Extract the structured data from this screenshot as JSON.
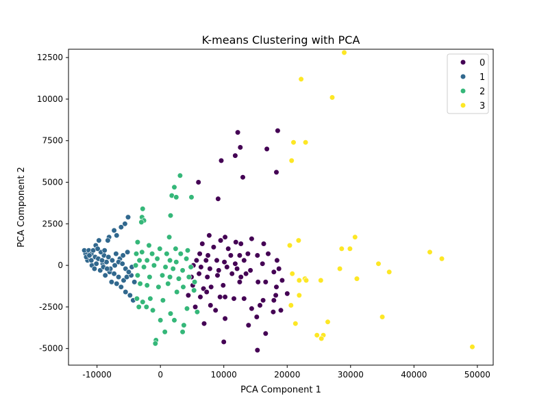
{
  "chart_data": {
    "type": "scatter",
    "title": "K-means Clustering with PCA",
    "xlabel": "PCA Component 1",
    "ylabel": "PCA Component 2",
    "xlim": [
      -14500,
      52500
    ],
    "ylim": [
      -6000,
      13000
    ],
    "xticks": [
      -10000,
      0,
      10000,
      20000,
      30000,
      40000,
      50000
    ],
    "yticks": [
      -5000,
      -2500,
      0,
      2500,
      5000,
      7500,
      10000,
      12500
    ],
    "grid": false,
    "legend": {
      "position": "top-right",
      "title": ""
    },
    "series": [
      {
        "name": "0",
        "color": "#440154",
        "points": [
          [
            12200,
            8000
          ],
          [
            18500,
            8100
          ],
          [
            12600,
            7100
          ],
          [
            16800,
            7000
          ],
          [
            11800,
            6600
          ],
          [
            9600,
            6300
          ],
          [
            13000,
            5300
          ],
          [
            18300,
            5600
          ],
          [
            6000,
            5000
          ],
          [
            9100,
            4000
          ],
          [
            10200,
            1700
          ],
          [
            7700,
            1800
          ],
          [
            6600,
            1300
          ],
          [
            9500,
            1500
          ],
          [
            11900,
            1400
          ],
          [
            12700,
            1300
          ],
          [
            14400,
            1600
          ],
          [
            16300,
            1300
          ],
          [
            8400,
            1100
          ],
          [
            10700,
            1000
          ],
          [
            6200,
            700
          ],
          [
            7500,
            600
          ],
          [
            11100,
            600
          ],
          [
            12500,
            600
          ],
          [
            13800,
            700
          ],
          [
            15300,
            600
          ],
          [
            17000,
            700
          ],
          [
            5700,
            300
          ],
          [
            7200,
            300
          ],
          [
            8900,
            300
          ],
          [
            10100,
            200
          ],
          [
            11800,
            100
          ],
          [
            13200,
            300
          ],
          [
            16100,
            100
          ],
          [
            18400,
            300
          ],
          [
            5200,
            0
          ],
          [
            6400,
            -100
          ],
          [
            7800,
            -200
          ],
          [
            9200,
            -300
          ],
          [
            10500,
            -100
          ],
          [
            12100,
            -200
          ],
          [
            14200,
            -300
          ],
          [
            17900,
            -400
          ],
          [
            18700,
            -200
          ],
          [
            4900,
            -700
          ],
          [
            6100,
            -500
          ],
          [
            7400,
            -700
          ],
          [
            9000,
            -600
          ],
          [
            11300,
            -500
          ],
          [
            12700,
            -700
          ],
          [
            13500,
            -500
          ],
          [
            15400,
            -1000
          ],
          [
            16600,
            -1000
          ],
          [
            19200,
            -900
          ],
          [
            5100,
            -1200
          ],
          [
            6800,
            -1400
          ],
          [
            8000,
            -1300
          ],
          [
            9900,
            -1200
          ],
          [
            12500,
            -1000
          ],
          [
            18300,
            -1300
          ],
          [
            4400,
            -1800
          ],
          [
            6300,
            -1900
          ],
          [
            7300,
            -1600
          ],
          [
            9400,
            -1900
          ],
          [
            10200,
            -1900
          ],
          [
            11600,
            -2000
          ],
          [
            13200,
            -2000
          ],
          [
            16200,
            -2100
          ],
          [
            17900,
            -2100
          ],
          [
            5500,
            -2500
          ],
          [
            7900,
            -2400
          ],
          [
            8700,
            -2700
          ],
          [
            14400,
            -2600
          ],
          [
            15700,
            -2400
          ],
          [
            17800,
            -2800
          ],
          [
            6900,
            -3500
          ],
          [
            10200,
            -3200
          ],
          [
            15200,
            -3100
          ],
          [
            13900,
            -3600
          ],
          [
            16600,
            -4100
          ],
          [
            10000,
            -4600
          ],
          [
            15300,
            -5100
          ],
          [
            19000,
            -2700
          ],
          [
            20000,
            -1700
          ],
          [
            18200,
            -1800
          ]
        ]
      },
      {
        "name": "1",
        "color": "#31688e",
        "points": [
          [
            -5100,
            2900
          ],
          [
            -5600,
            2500
          ],
          [
            -6200,
            2300
          ],
          [
            -7300,
            2100
          ],
          [
            -6900,
            1800
          ],
          [
            -8100,
            1700
          ],
          [
            -8300,
            1500
          ],
          [
            -9700,
            1500
          ],
          [
            -10200,
            1200
          ],
          [
            -11800,
            700
          ],
          [
            -12000,
            900
          ],
          [
            -11300,
            900
          ],
          [
            -10900,
            700
          ],
          [
            -10300,
            500
          ],
          [
            -9800,
            400
          ],
          [
            -8900,
            600
          ],
          [
            -8200,
            500
          ],
          [
            -7600,
            300
          ],
          [
            -7000,
            700
          ],
          [
            -6400,
            400
          ],
          [
            -5900,
            600
          ],
          [
            -5200,
            800
          ],
          [
            -11500,
            300
          ],
          [
            -10800,
            0
          ],
          [
            -10400,
            -200
          ],
          [
            -9500,
            -300
          ],
          [
            -8700,
            -600
          ],
          [
            -8000,
            -400
          ],
          [
            -7300,
            -500
          ],
          [
            -6600,
            -700
          ],
          [
            -5800,
            -900
          ],
          [
            -5300,
            -700
          ],
          [
            -4600,
            -600
          ],
          [
            -4100,
            -1000
          ],
          [
            -7700,
            -1000
          ],
          [
            -6900,
            -1100
          ],
          [
            -6200,
            -1300
          ],
          [
            -5500,
            -1600
          ],
          [
            -4800,
            -1800
          ],
          [
            -4300,
            -2100
          ],
          [
            -9100,
            100
          ],
          [
            -9000,
            -100
          ],
          [
            -8500,
            200
          ],
          [
            -7900,
            -200
          ],
          [
            -7200,
            0
          ],
          [
            -6600,
            200
          ],
          [
            -6000,
            100
          ],
          [
            -5500,
            -200
          ],
          [
            -5000,
            -400
          ],
          [
            -4500,
            -100
          ],
          [
            -11700,
            500
          ],
          [
            -10900,
            300
          ],
          [
            -10100,
            100
          ],
          [
            -9400,
            800
          ],
          [
            -8800,
            900
          ],
          [
            -11200,
            600
          ],
          [
            -10600,
            900
          ],
          [
            -9900,
            1000
          ],
          [
            -9200,
            300
          ],
          [
            -8400,
            -200
          ]
        ]
      },
      {
        "name": "2",
        "color": "#35b779",
        "points": [
          [
            3100,
            5400
          ],
          [
            2200,
            4700
          ],
          [
            1800,
            4200
          ],
          [
            2500,
            4100
          ],
          [
            4900,
            4100
          ],
          [
            -2800,
            3400
          ],
          [
            -2900,
            2900
          ],
          [
            -2600,
            2700
          ],
          [
            -3000,
            2600
          ],
          [
            1600,
            3000
          ],
          [
            -3600,
            1400
          ],
          [
            1400,
            1700
          ],
          [
            -1800,
            1200
          ],
          [
            -100,
            1000
          ],
          [
            2400,
            1000
          ],
          [
            4300,
            900
          ],
          [
            -3800,
            700
          ],
          [
            -2900,
            800
          ],
          [
            -1300,
            700
          ],
          [
            1000,
            700
          ],
          [
            3200,
            700
          ],
          [
            -3300,
            300
          ],
          [
            -2100,
            300
          ],
          [
            -500,
            400
          ],
          [
            1500,
            300
          ],
          [
            2500,
            200
          ],
          [
            4100,
            400
          ],
          [
            -3900,
            0
          ],
          [
            -2600,
            -100
          ],
          [
            -1000,
            0
          ],
          [
            800,
            -100
          ],
          [
            2000,
            -200
          ],
          [
            3500,
            -300
          ],
          [
            4800,
            -100
          ],
          [
            -3600,
            -600
          ],
          [
            -1700,
            -700
          ],
          [
            300,
            -600
          ],
          [
            1500,
            -700
          ],
          [
            2900,
            -800
          ],
          [
            4500,
            -700
          ],
          [
            -3200,
            -1100
          ],
          [
            -2100,
            -1200
          ],
          [
            -300,
            -1300
          ],
          [
            1200,
            -1100
          ],
          [
            3600,
            -1300
          ],
          [
            -3700,
            -2000
          ],
          [
            -2800,
            -2200
          ],
          [
            -1600,
            -2000
          ],
          [
            400,
            -2100
          ],
          [
            2600,
            -1600
          ],
          [
            -3400,
            -2500
          ],
          [
            -1200,
            -2700
          ],
          [
            0,
            -3300
          ],
          [
            1600,
            -2900
          ],
          [
            2200,
            -3300
          ],
          [
            3700,
            -3600
          ],
          [
            3500,
            -4000
          ],
          [
            700,
            -4000
          ],
          [
            -700,
            -4500
          ],
          [
            -800,
            -4700
          ],
          [
            5800,
            -2800
          ],
          [
            5300,
            -1500
          ],
          [
            5400,
            -1000
          ],
          [
            4200,
            -2600
          ],
          [
            -2200,
            -2500
          ]
        ]
      },
      {
        "name": "3",
        "color": "#fde725",
        "points": [
          [
            29000,
            12800
          ],
          [
            22200,
            11200
          ],
          [
            27100,
            10100
          ],
          [
            21000,
            7400
          ],
          [
            22900,
            7400
          ],
          [
            20700,
            6300
          ],
          [
            30700,
            1700
          ],
          [
            21800,
            1500
          ],
          [
            20400,
            1200
          ],
          [
            28600,
            1000
          ],
          [
            29900,
            1000
          ],
          [
            42500,
            800
          ],
          [
            44400,
            400
          ],
          [
            34400,
            100
          ],
          [
            28300,
            -200
          ],
          [
            36100,
            -400
          ],
          [
            20800,
            -500
          ],
          [
            22800,
            -800
          ],
          [
            25300,
            -900
          ],
          [
            21900,
            -900
          ],
          [
            23000,
            -900
          ],
          [
            31000,
            -800
          ],
          [
            21900,
            -1800
          ],
          [
            20600,
            -2400
          ],
          [
            35000,
            -3100
          ],
          [
            26400,
            -3400
          ],
          [
            21300,
            -3500
          ],
          [
            24700,
            -4200
          ],
          [
            25700,
            -4200
          ],
          [
            25400,
            -4400
          ],
          [
            49200,
            -4900
          ]
        ]
      }
    ]
  }
}
